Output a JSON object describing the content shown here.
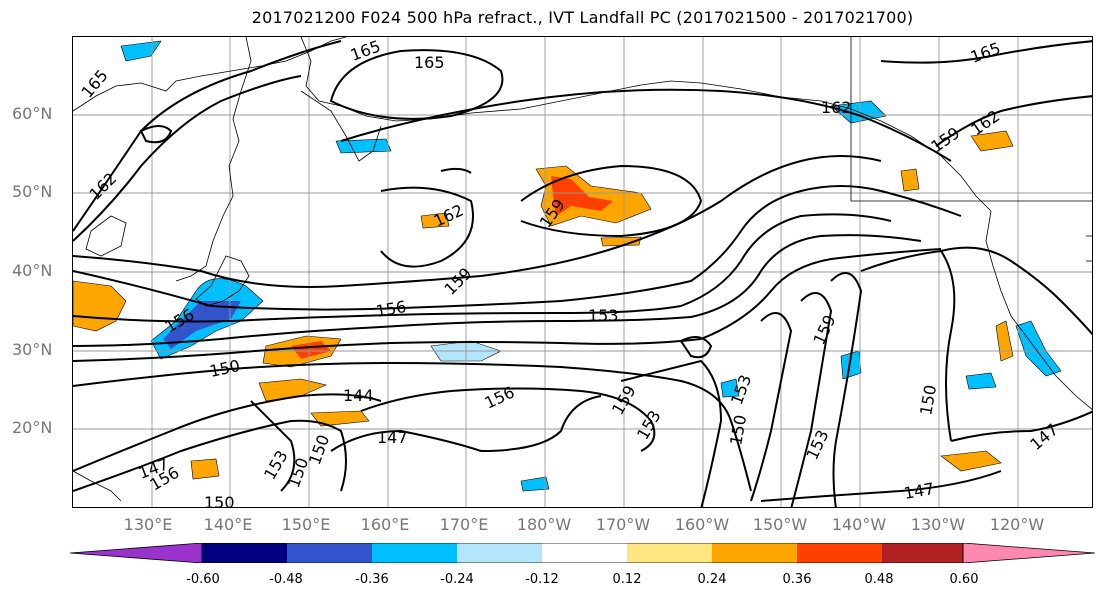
{
  "title": "2017021200 F024 500 hPa refract., IVT Landfall PC (2017021500 - 2017021700)",
  "map": {
    "lat_labels": [
      "60°N",
      "50°N",
      "40°N",
      "30°N",
      "20°N"
    ],
    "lon_labels": [
      "130°E",
      "140°E",
      "150°E",
      "160°E",
      "170°E",
      "180°W",
      "170°W",
      "160°W",
      "150°W",
      "140°W",
      "130°W",
      "120°W"
    ],
    "contour_labels": [
      "165",
      "165",
      "165",
      "165",
      "162",
      "162",
      "162",
      "162",
      "159",
      "159",
      "159",
      "159",
      "156",
      "156",
      "153",
      "153",
      "153",
      "153",
      "150",
      "150",
      "150",
      "150",
      "150",
      "147",
      "147",
      "147",
      "147",
      "144",
      "156",
      "153",
      "156",
      "159",
      "150"
    ]
  },
  "colorbar": {
    "colors": [
      "#9933cc",
      "#000080",
      "#3355cc",
      "#00bfff",
      "#b3e5fc",
      "#ffffff",
      "#ffe680",
      "#ffa500",
      "#ff4000",
      "#b22222",
      "#ff88b0"
    ],
    "tick_labels": [
      "-0.60",
      "-0.48",
      "-0.36",
      "-0.24",
      "-0.12",
      "0.12",
      "0.24",
      "0.36",
      "0.48",
      "0.60"
    ]
  }
}
